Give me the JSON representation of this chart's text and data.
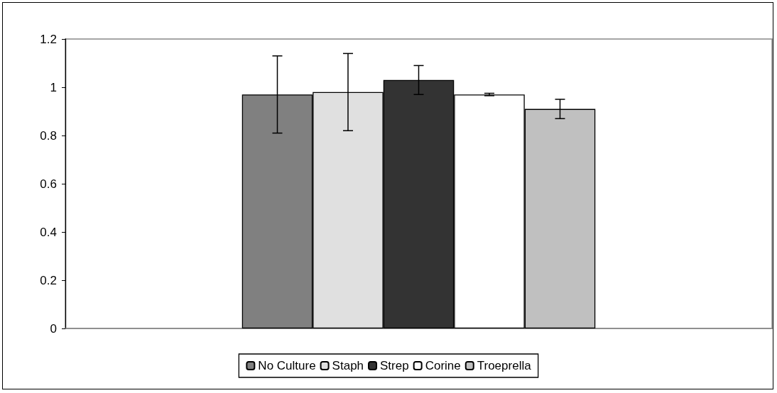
{
  "chart_data": {
    "type": "bar",
    "categories": [
      null
    ],
    "series": [
      {
        "name": "No Culture",
        "color": "#808080",
        "values": [
          0.97
        ],
        "errors": [
          0.16
        ]
      },
      {
        "name": "Staph",
        "color": "#e0e0e0",
        "values": [
          0.98
        ],
        "errors": [
          0.16
        ]
      },
      {
        "name": "Strep",
        "color": "#333333",
        "values": [
          1.03
        ],
        "errors": [
          0.06
        ]
      },
      {
        "name": "Corine",
        "color": "#ffffff",
        "values": [
          0.97
        ],
        "errors": [
          0.005
        ]
      },
      {
        "name": "Troeprella",
        "color": "#c0c0c0",
        "values": [
          0.91
        ],
        "errors": [
          0.04
        ]
      }
    ],
    "ylim": [
      0,
      1.2
    ],
    "yticks": [
      0,
      0.2,
      0.4,
      0.6,
      0.8,
      1,
      1.2
    ],
    "grid": false,
    "legend": "bottom"
  }
}
